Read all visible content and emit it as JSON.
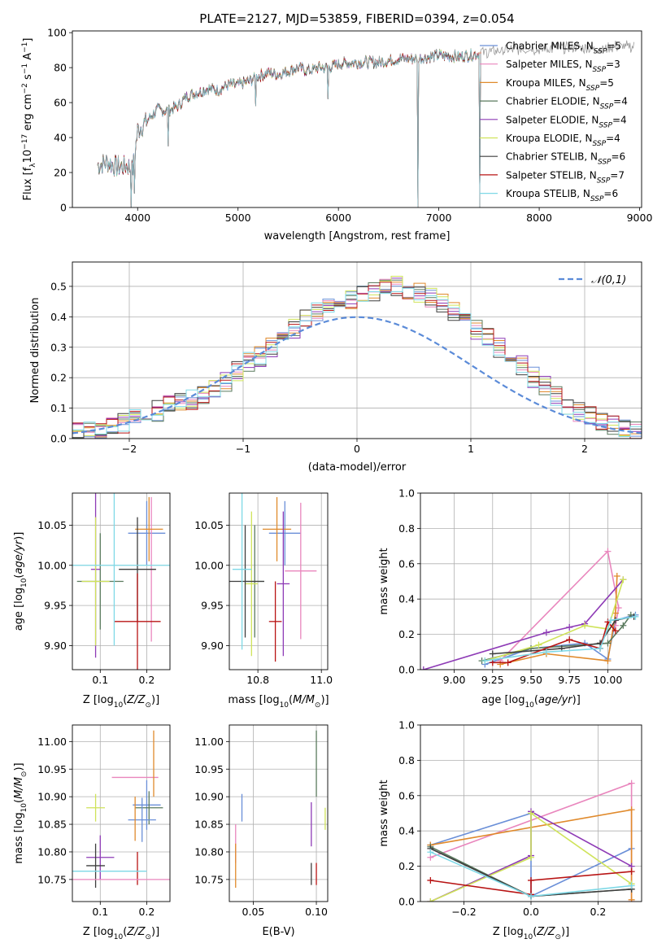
{
  "figure_title": "PLATE=2127, MJD=53859, FIBERID=0394, z=0.054",
  "model_colors": [
    "#6a8fd8",
    "#e986bd",
    "#e08a2c",
    "#5a7a5e",
    "#8e3bb6",
    "#cfe35a",
    "#3e3e3e",
    "#b81414",
    "#7ed8e6"
  ],
  "legend": [
    "Chabrier MILES, N_SSP=5",
    "Salpeter MILES, N_SSP=3",
    "Kroupa MILES, N_SSP=5",
    "Chabrier ELODIE, N_SSP=4",
    "Salpeter ELODIE, N_SSP=4",
    "Kroupa ELODIE, N_SSP=4",
    "Chabrier STELIB, N_SSP=6",
    "Salpeter STELIB, N_SSP=7",
    "Kroupa STELIB, N_SSP=6"
  ],
  "chart_data": [
    {
      "id": "spectrum",
      "type": "line",
      "xlabel": "wavelength [Angstrom, rest frame]",
      "ylabel": "Flux [f_λ10^-17 erg cm^-2 s^-1 A^-1]",
      "xlim": [
        3350,
        9020
      ],
      "ylim": [
        0,
        101
      ],
      "xticks": [
        4000,
        5000,
        6000,
        7000,
        8000,
        9000
      ],
      "yticks": [
        0,
        20,
        40,
        60,
        80,
        100
      ],
      "continuum": {
        "x": [
          3600,
          3700,
          3800,
          3900,
          3950,
          4000,
          4100,
          4200,
          4300,
          4400,
          4500,
          4600,
          4700,
          4800,
          4900,
          5000,
          5100,
          5200,
          5300,
          5400,
          5500,
          5600,
          5700,
          5800,
          5900,
          6000,
          6200,
          6400,
          6600,
          6800,
          7000,
          7200,
          7400,
          7600,
          7800,
          8000,
          8200,
          8400,
          8600,
          8800,
          8950
        ],
        "y": [
          24,
          26,
          23,
          24,
          21,
          44,
          50,
          56,
          55,
          58,
          64,
          66,
          68,
          67,
          70,
          70,
          72,
          75,
          77,
          76,
          78,
          80,
          78,
          80,
          80,
          82,
          83,
          83,
          85,
          85,
          87,
          86,
          88,
          89,
          90,
          90,
          91,
          91,
          90,
          92,
          91
        ]
      },
      "models_end_wavelength": 7420,
      "data_line_color": "#9a9a9a",
      "absorption_dips": [
        {
          "x": 3933,
          "ymin": 0
        },
        {
          "x": 3969,
          "ymin": 8
        },
        {
          "x": 4305,
          "ymin": 35
        },
        {
          "x": 5175,
          "ymin": 58
        },
        {
          "x": 5893,
          "ymin": 62
        },
        {
          "x": 6790,
          "ymin": 0
        },
        {
          "x": 7405,
          "ymin": 0
        }
      ]
    },
    {
      "id": "residuals",
      "type": "histogram",
      "xlabel": "(data-model)/error",
      "ylabel": "Normed distribution",
      "xlim": [
        -2.5,
        2.5
      ],
      "ylim": [
        0,
        0.58
      ],
      "xticks": [
        -2,
        -1,
        0,
        1,
        2
      ],
      "yticks": [
        0.0,
        0.1,
        0.2,
        0.3,
        0.4,
        0.5
      ],
      "bin_width": 0.1,
      "base_counts": [
        0.02,
        0.02,
        0.03,
        0.04,
        0.05,
        0.06,
        0.08,
        0.09,
        0.11,
        0.12,
        0.13,
        0.15,
        0.17,
        0.19,
        0.22,
        0.25,
        0.27,
        0.3,
        0.33,
        0.36,
        0.4,
        0.42,
        0.44,
        0.45,
        0.46,
        0.47,
        0.48,
        0.49,
        0.5,
        0.49,
        0.48,
        0.46,
        0.44,
        0.42,
        0.39,
        0.36,
        0.33,
        0.3,
        0.27,
        0.24,
        0.2,
        0.17,
        0.14,
        0.11,
        0.09,
        0.07,
        0.05,
        0.04,
        0.03,
        0.02
      ],
      "reference_curve": "N(0,1)",
      "legend": "𝒩(0,1)",
      "reference_color": "#5b8bd8"
    },
    {
      "id": "age_vs_Z",
      "type": "errorbar",
      "xlabel": "Z [log10(Z/Z⊙)]",
      "ylabel": "age  [log10(age/yr)]",
      "xlim": [
        0.04,
        0.25
      ],
      "ylim": [
        9.87,
        10.09
      ],
      "xticks": [
        0.1,
        0.2
      ],
      "yticks": [
        9.9,
        9.95,
        10.0,
        10.05
      ],
      "points": [
        {
          "x": 0.2,
          "xerr": 0.04,
          "y": 10.04,
          "yerr": 0.04
        },
        {
          "x": 0.21,
          "xerr": 0.01,
          "y": 9.995,
          "yerr": 0.09
        },
        {
          "x": 0.205,
          "xerr": 0.03,
          "y": 10.045,
          "yerr": 0.04
        },
        {
          "x": 0.1,
          "xerr": 0.05,
          "y": 9.98,
          "yerr": 0.06
        },
        {
          "x": 0.09,
          "xerr": 0.01,
          "y": 9.995,
          "yerr": 0.11
        },
        {
          "x": 0.09,
          "xerr": 0.03,
          "y": 9.98,
          "yerr": 0.08
        },
        {
          "x": 0.18,
          "xerr": 0.04,
          "y": 9.995,
          "yerr": 0.065
        },
        {
          "x": 0.18,
          "xerr": 0.05,
          "y": 9.93,
          "yerr": 0.06
        },
        {
          "x": 0.13,
          "xerr": 0.13,
          "y": 10.0,
          "yerr": 0.1
        }
      ]
    },
    {
      "id": "age_vs_mass",
      "type": "errorbar",
      "xlabel": "mass [log10(M/M⊙)]",
      "ylabel": "",
      "xlim": [
        10.71,
        11.02
      ],
      "ylim": [
        9.87,
        10.09
      ],
      "xticks": [
        10.8,
        11.0
      ],
      "yticks": [
        9.9,
        9.95,
        10.0,
        10.05
      ],
      "points": [
        {
          "x": 10.885,
          "xerr": 0.05,
          "y": 10.04,
          "yerr": 0.04
        },
        {
          "x": 10.935,
          "xerr": 0.05,
          "y": 9.993,
          "yerr": 0.085
        },
        {
          "x": 10.86,
          "xerr": 0.045,
          "y": 10.045,
          "yerr": 0.04
        },
        {
          "x": 10.79,
          "xerr": 0.03,
          "y": 9.98,
          "yerr": 0.07
        },
        {
          "x": 10.88,
          "xerr": 0.02,
          "y": 9.977,
          "yerr": 0.09
        },
        {
          "x": 10.78,
          "xerr": 0.02,
          "y": 9.977,
          "yerr": 0.09
        },
        {
          "x": 10.76,
          "xerr": 0.06,
          "y": 9.98,
          "yerr": 0.07
        },
        {
          "x": 10.855,
          "xerr": 0.02,
          "y": 9.93,
          "yerr": 0.05
        },
        {
          "x": 10.75,
          "xerr": 0.03,
          "y": 9.995,
          "yerr": 0.1
        }
      ]
    },
    {
      "id": "weight_vs_age",
      "type": "line",
      "xlabel": "age  [log10(age/yr)]",
      "ylabel": "mass weight",
      "xlim": [
        8.78,
        10.22
      ],
      "ylim": [
        0,
        1.0
      ],
      "xticks": [
        9.0,
        9.25,
        9.5,
        9.75,
        10.0
      ],
      "yticks": [
        0.0,
        0.2,
        0.4,
        0.6,
        0.8,
        1.0
      ],
      "series": [
        {
          "x": [
            9.2,
            9.5,
            9.85,
            10.0,
            10.05,
            10.18
          ],
          "y": [
            0.03,
            0.12,
            0.15,
            0.06,
            0.28,
            0.31
          ]
        },
        {
          "x": [
            9.3,
            10.0,
            10.07,
            10.05
          ],
          "y": [
            0.05,
            0.67,
            0.35,
            0.25
          ]
        },
        {
          "x": [
            9.3,
            9.6,
            10.0,
            10.05,
            10.06
          ],
          "y": [
            0.03,
            0.09,
            0.05,
            0.32,
            0.53
          ]
        },
        {
          "x": [
            9.18,
            9.5,
            10.0,
            10.1,
            10.15
          ],
          "y": [
            0.05,
            0.12,
            0.15,
            0.25,
            0.31
          ]
        },
        {
          "x": [
            8.8,
            9.6,
            9.75,
            9.85,
            10.1
          ],
          "y": [
            0.0,
            0.21,
            0.24,
            0.26,
            0.51
          ]
        },
        {
          "x": [
            9.2,
            9.55,
            9.85,
            10.0,
            10.1
          ],
          "y": [
            0.05,
            0.14,
            0.25,
            0.23,
            0.51
          ]
        },
        {
          "x": [
            9.25,
            9.7,
            9.95,
            10.05,
            10.17
          ],
          "y": [
            0.09,
            0.12,
            0.15,
            0.28,
            0.3
          ]
        },
        {
          "x": [
            9.25,
            9.35,
            9.75,
            9.95,
            10.0,
            10.05
          ],
          "y": [
            0.04,
            0.04,
            0.17,
            0.12,
            0.27,
            0.22
          ]
        },
        {
          "x": [
            9.2,
            9.6,
            9.95,
            10.02,
            10.18
          ],
          "y": [
            0.05,
            0.1,
            0.12,
            0.28,
            0.3
          ]
        }
      ]
    },
    {
      "id": "mass_vs_Z",
      "type": "errorbar",
      "xlabel": "Z [log10(Z/Z⊙)]",
      "ylabel": "mass [log10(M/M⊙)]",
      "xlim": [
        0.04,
        0.25
      ],
      "ylim": [
        10.71,
        11.03
      ],
      "xticks": [
        0.1,
        0.2
      ],
      "yticks": [
        10.75,
        10.8,
        10.85,
        10.9,
        10.95,
        11.0
      ],
      "points": [
        {
          "x": 0.2,
          "xerr": 0.03,
          "y": 10.885,
          "yerr": 0.045
        },
        {
          "x": 0.175,
          "xerr": 0.05,
          "y": 10.935,
          "yerr": 0.0
        },
        {
          "x": 0.215,
          "xerr": 0.0,
          "y": 10.96,
          "yerr": 0.06
        },
        {
          "x": 0.205,
          "xerr": 0.03,
          "y": 10.88,
          "yerr": 0.03
        },
        {
          "x": 0.1,
          "xerr": 0.03,
          "y": 10.79,
          "yerr": 0.04
        },
        {
          "x": 0.09,
          "xerr": 0.02,
          "y": 10.88,
          "yerr": 0.025
        },
        {
          "x": 0.09,
          "xerr": 0.02,
          "y": 10.775,
          "yerr": 0.04
        },
        {
          "x": 0.18,
          "xerr": 0.0,
          "y": 10.77,
          "yerr": 0.03
        },
        {
          "x": 0.12,
          "xerr": 0.08,
          "y": 10.765,
          "yerr": 0.0
        },
        {
          "x": 0.19,
          "xerr": 0.03,
          "y": 10.858,
          "yerr": 0.04
        },
        {
          "x": 0.13,
          "xerr": 0.13,
          "y": 10.75,
          "yerr": 0.0
        },
        {
          "x": 0.175,
          "xerr": 0.0,
          "y": 10.86,
          "yerr": 0.04
        }
      ]
    },
    {
      "id": "mass_vs_EBV",
      "type": "errorbar",
      "xlabel": "E(B-V)",
      "ylabel": "",
      "xlim": [
        0.031,
        0.109
      ],
      "ylim": [
        10.71,
        11.03
      ],
      "xticks": [
        0.05,
        0.1
      ],
      "yticks": [
        10.75,
        10.8,
        10.85,
        10.9,
        10.95,
        11.0
      ],
      "points": [
        {
          "x": 0.041,
          "y": 10.88,
          "yerr": 0.025
        },
        {
          "x": 0.036,
          "y": 10.815,
          "yerr": 0.035
        },
        {
          "x": 0.036,
          "y": 10.775,
          "yerr": 0.04
        },
        {
          "x": 0.1,
          "y": 10.96,
          "yerr": 0.06
        },
        {
          "x": 0.096,
          "y": 10.85,
          "yerr": 0.04
        },
        {
          "x": 0.107,
          "y": 10.86,
          "yerr": 0.02
        },
        {
          "x": 0.096,
          "y": 10.76,
          "yerr": 0.02
        },
        {
          "x": 0.1,
          "y": 10.76,
          "yerr": 0.02
        }
      ]
    },
    {
      "id": "weight_vs_Z",
      "type": "line",
      "xlabel": "Z [log10(Z/Z⊙)]",
      "ylabel": "mass weight",
      "xlim": [
        -0.33,
        0.33
      ],
      "ylim": [
        0,
        1.0
      ],
      "xticks": [
        -0.2,
        0.0,
        0.2
      ],
      "yticks": [
        0.0,
        0.2,
        0.4,
        0.6,
        0.8,
        1.0
      ],
      "series": [
        {
          "x": [
            -0.3,
            0.0,
            0.0,
            0.3
          ],
          "y": [
            0.32,
            0.5,
            0.03,
            0.3
          ]
        },
        {
          "x": [
            -0.3,
            0.3,
            0.3
          ],
          "y": [
            0.25,
            0.67,
            0.0
          ]
        },
        {
          "x": [
            -0.3,
            0.3,
            0.3
          ],
          "y": [
            0.32,
            0.52,
            0.01
          ]
        },
        {
          "x": [
            -0.3,
            0.0,
            0.3
          ],
          "y": [
            0.31,
            0.03,
            0.07
          ]
        },
        {
          "x": [
            -0.3,
            0.0,
            0.0,
            0.3
          ],
          "y": [
            0.0,
            0.26,
            0.51,
            0.2
          ]
        },
        {
          "x": [
            -0.3,
            0.0,
            0.0,
            0.3
          ],
          "y": [
            0.0,
            0.25,
            0.5,
            0.1
          ]
        },
        {
          "x": [
            -0.3,
            0.0,
            0.3
          ],
          "y": [
            0.3,
            0.03,
            0.07
          ]
        },
        {
          "x": [
            -0.3,
            0.0,
            0.0,
            0.3
          ],
          "y": [
            0.12,
            0.04,
            0.12,
            0.17
          ]
        },
        {
          "x": [
            -0.3,
            0.0,
            0.3
          ],
          "y": [
            0.28,
            0.03,
            0.09
          ]
        }
      ]
    }
  ]
}
